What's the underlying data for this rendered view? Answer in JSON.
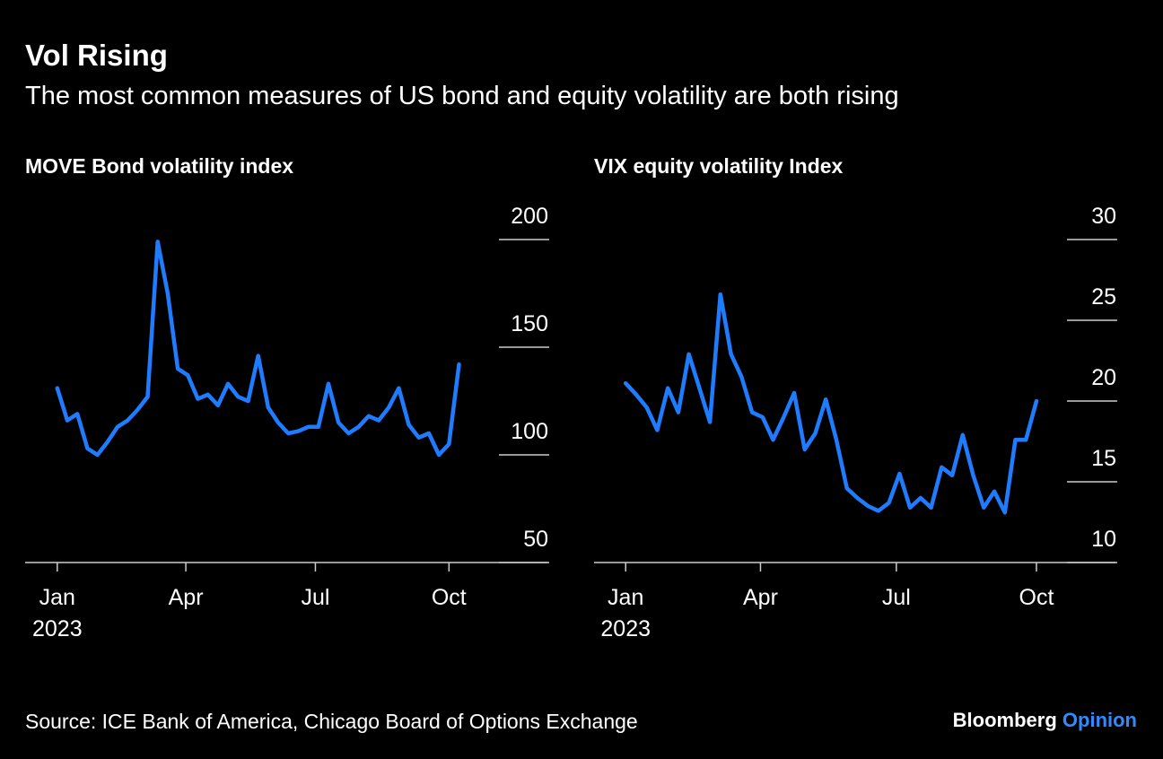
{
  "title": "Vol Rising",
  "subtitle": "The most common measures of US bond and equity volatility are both rising",
  "source": "Source: ICE Bank of America, Chicago Board of Options Exchange",
  "brand": {
    "name": "Bloomberg",
    "suffix": "Opinion"
  },
  "chart_data": [
    {
      "type": "line",
      "title": "MOVE Bond volatility index",
      "color": "#1f7cff",
      "values": [
        131,
        116,
        119,
        103,
        100,
        106,
        113,
        116,
        121,
        127,
        199,
        175,
        140,
        137,
        126,
        128,
        123,
        133,
        127,
        125,
        146,
        122,
        115,
        110,
        111,
        113,
        113,
        133,
        115,
        110,
        113,
        118,
        116,
        122,
        131,
        114,
        108,
        110,
        100,
        105,
        142
      ],
      "xlim": [
        -3.2,
        48.8
      ],
      "xticks": [
        {
          "value": 0,
          "label": "Jan"
        },
        {
          "value": 12.8,
          "label": "Apr"
        },
        {
          "value": 25.7,
          "label": "Jul"
        },
        {
          "value": 39,
          "label": "Oct"
        }
      ],
      "year_label": "2023",
      "ylim": [
        50,
        200
      ],
      "yticks": [
        50,
        100,
        150,
        200
      ],
      "grid": true
    },
    {
      "type": "line",
      "title": "VIX equity volatility Index",
      "color": "#1f7cff",
      "values": [
        21.1,
        20.4,
        19.6,
        18.2,
        20.8,
        19.3,
        22.9,
        20.8,
        18.7,
        26.6,
        22.9,
        21.5,
        19.3,
        19.0,
        17.6,
        19.0,
        20.5,
        17.0,
        18.0,
        20.1,
        17.6,
        14.6,
        14.0,
        13.5,
        13.2,
        13.7,
        15.5,
        13.4,
        14.0,
        13.4,
        15.9,
        15.4,
        17.9,
        15.4,
        13.4,
        14.4,
        13.1,
        17.6,
        17.6,
        20.0
      ],
      "xlim": [
        -3.0,
        46.5
      ],
      "xticks": [
        {
          "value": 0,
          "label": "Jan"
        },
        {
          "value": 12.8,
          "label": "Apr"
        },
        {
          "value": 25.7,
          "label": "Jul"
        },
        {
          "value": 39,
          "label": "Oct"
        }
      ],
      "year_label": "2023",
      "ylim": [
        10,
        30
      ],
      "yticks": [
        10,
        15,
        20,
        25,
        30
      ],
      "grid": true
    }
  ]
}
